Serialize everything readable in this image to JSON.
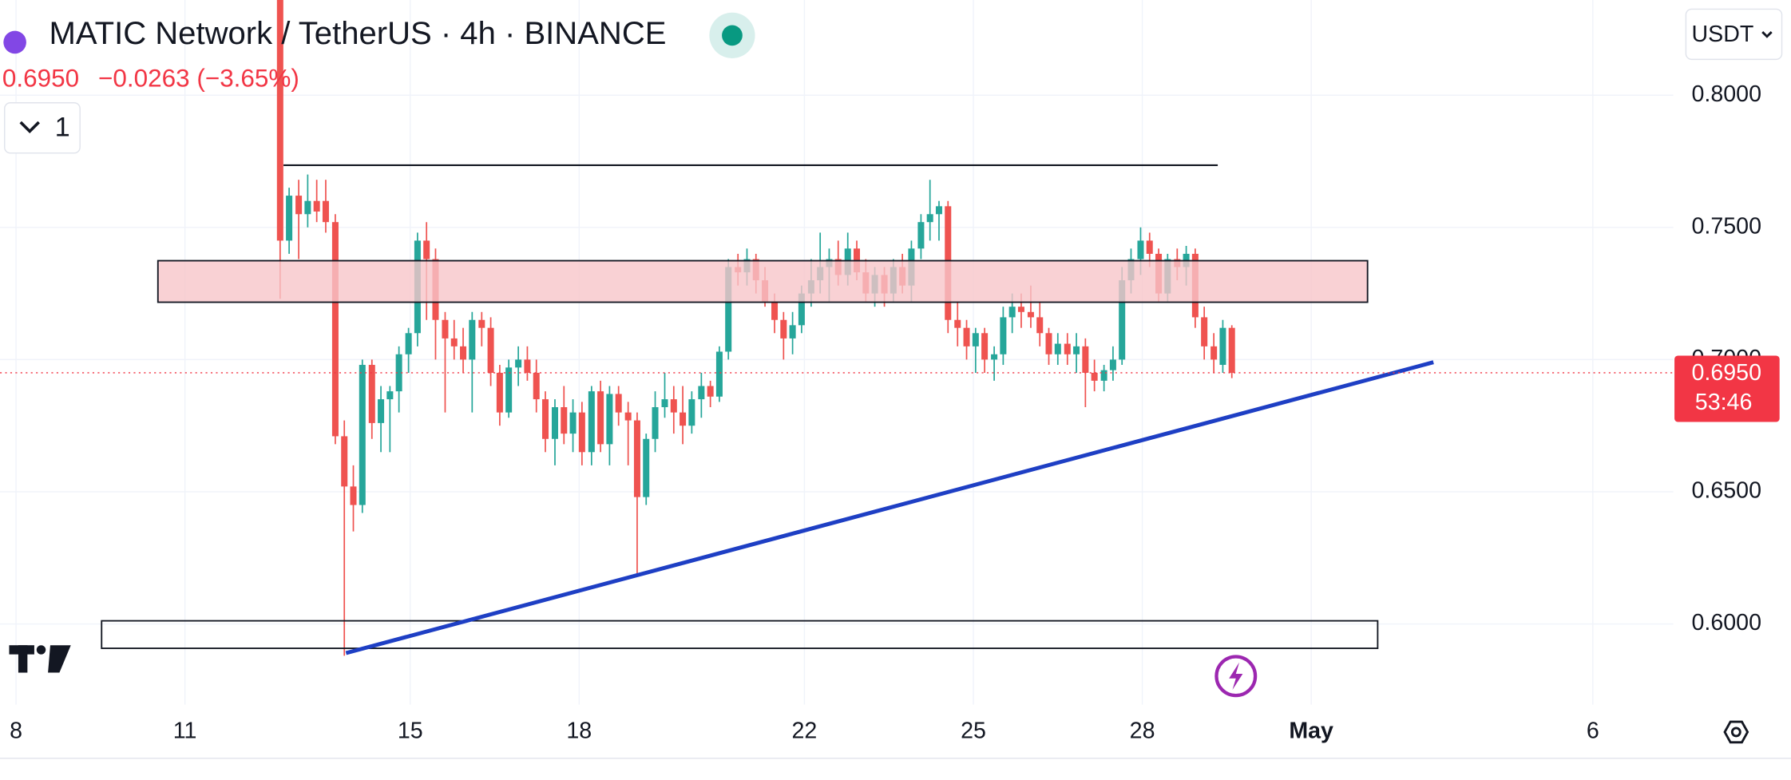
{
  "chart_data": {
    "type": "candlestick",
    "title": "MATIC Network / TetherUS · 4h · BINANCE",
    "price": "0.6950",
    "change": "−0.0263 (−3.65%)",
    "indicator_count": "1",
    "currency": "USDT",
    "last_price_label": "0.6950",
    "countdown": "53:46",
    "last_price": 0.695,
    "up_color": "#26a69a",
    "down_color": "#ef5350",
    "xlim": [
      7.716,
      37.43
    ],
    "ylim": [
      0.5695,
      0.836
    ],
    "xticks": [
      8,
      11,
      15,
      18,
      22,
      25,
      28,
      {
        "value": 31,
        "label": "May"
      },
      {
        "value": 36,
        "label": "6"
      }
    ],
    "yticks": [
      {
        "value": 0.8,
        "label": "0.8000"
      },
      {
        "value": 0.75,
        "label": "0.7500"
      },
      {
        "value": 0.7,
        "label": "0.7000"
      },
      {
        "value": 0.65,
        "label": "0.6500"
      },
      {
        "value": 0.6,
        "label": "0.6000"
      }
    ],
    "grid": true,
    "x": [
      12.69,
      12.85,
      13.02,
      13.18,
      13.34,
      13.5,
      13.67,
      13.83,
      13.99,
      14.15,
      14.32,
      14.48,
      14.64,
      14.8,
      14.97,
      15.13,
      15.29,
      15.45,
      15.62,
      15.78,
      15.94,
      16.1,
      16.27,
      16.43,
      16.59,
      16.75,
      16.92,
      17.08,
      17.24,
      17.4,
      17.57,
      17.73,
      17.89,
      18.05,
      18.22,
      18.38,
      18.54,
      18.7,
      18.87,
      19.03,
      19.19,
      19.35,
      19.52,
      19.68,
      19.84,
      20.0,
      20.17,
      20.33,
      20.49,
      20.65,
      20.82,
      20.98,
      21.14,
      21.3,
      21.47,
      21.63,
      21.79,
      21.95,
      22.12,
      22.28,
      22.44,
      22.6,
      22.77,
      22.93,
      23.09,
      23.25,
      23.42,
      23.58,
      23.74,
      23.9,
      24.07,
      24.23,
      24.39,
      24.55,
      24.72,
      24.88,
      25.04,
      25.2,
      25.37,
      25.53,
      25.69,
      25.85,
      26.02,
      26.18,
      26.34,
      26.5,
      26.67,
      26.83,
      26.99,
      27.15,
      27.32,
      27.48,
      27.64,
      27.8,
      27.97,
      28.13,
      28.29,
      28.45,
      28.62,
      28.78,
      28.94,
      29.1,
      29.27,
      29.43,
      29.59
    ],
    "open": [
      0.84,
      0.745,
      0.762,
      0.755,
      0.76,
      0.76,
      0.752,
      0.671,
      0.652,
      0.645,
      0.698,
      0.676,
      0.685,
      0.688,
      0.702,
      0.71,
      0.745,
      0.738,
      0.715,
      0.708,
      0.705,
      0.7,
      0.715,
      0.712,
      0.695,
      0.68,
      0.697,
      0.7,
      0.695,
      0.685,
      0.67,
      0.682,
      0.672,
      0.68,
      0.665,
      0.688,
      0.668,
      0.687,
      0.68,
      0.677,
      0.648,
      0.67,
      0.682,
      0.685,
      0.68,
      0.675,
      0.685,
      0.69,
      0.686,
      0.703,
      0.735,
      0.733,
      0.738,
      0.73,
      0.722,
      0.715,
      0.708,
      0.713,
      0.725,
      0.73,
      0.735,
      0.738,
      0.732,
      0.742,
      0.733,
      0.725,
      0.732,
      0.725,
      0.735,
      0.728,
      0.742,
      0.752,
      0.755,
      0.758,
      0.715,
      0.712,
      0.705,
      0.71,
      0.7,
      0.702,
      0.716,
      0.72,
      0.718,
      0.716,
      0.71,
      0.702,
      0.706,
      0.702,
      0.705,
      0.695,
      0.692,
      0.696,
      0.7,
      0.73,
      0.738,
      0.745,
      0.74,
      0.725,
      0.738,
      0.735,
      0.74,
      0.716,
      0.705,
      0.698,
      0.712
    ],
    "high": [
      0.845,
      0.765,
      0.768,
      0.77,
      0.768,
      0.768,
      0.755,
      0.677,
      0.66,
      0.7,
      0.7,
      0.69,
      0.69,
      0.705,
      0.712,
      0.748,
      0.752,
      0.742,
      0.718,
      0.715,
      0.712,
      0.718,
      0.718,
      0.716,
      0.698,
      0.7,
      0.705,
      0.705,
      0.7,
      0.688,
      0.685,
      0.69,
      0.685,
      0.684,
      0.69,
      0.692,
      0.69,
      0.69,
      0.684,
      0.68,
      0.672,
      0.688,
      0.695,
      0.69,
      0.69,
      0.688,
      0.695,
      0.692,
      0.705,
      0.738,
      0.74,
      0.742,
      0.74,
      0.735,
      0.725,
      0.718,
      0.718,
      0.728,
      0.738,
      0.748,
      0.742,
      0.745,
      0.748,
      0.745,
      0.738,
      0.735,
      0.735,
      0.738,
      0.74,
      0.745,
      0.755,
      0.768,
      0.76,
      0.76,
      0.722,
      0.715,
      0.712,
      0.712,
      0.705,
      0.72,
      0.725,
      0.725,
      0.728,
      0.722,
      0.712,
      0.71,
      0.71,
      0.71,
      0.708,
      0.7,
      0.698,
      0.705,
      0.735,
      0.742,
      0.75,
      0.748,
      0.742,
      0.74,
      0.742,
      0.743,
      0.742,
      0.72,
      0.71,
      0.715,
      0.713
    ],
    "low": [
      0.723,
      0.74,
      0.738,
      0.75,
      0.752,
      0.748,
      0.668,
      0.588,
      0.635,
      0.642,
      0.67,
      0.665,
      0.665,
      0.68,
      0.695,
      0.705,
      0.715,
      0.7,
      0.68,
      0.7,
      0.695,
      0.68,
      0.705,
      0.69,
      0.675,
      0.678,
      0.69,
      0.692,
      0.68,
      0.665,
      0.66,
      0.668,
      0.665,
      0.66,
      0.66,
      0.665,
      0.66,
      0.675,
      0.66,
      0.618,
      0.645,
      0.665,
      0.678,
      0.672,
      0.668,
      0.672,
      0.678,
      0.682,
      0.684,
      0.7,
      0.728,
      0.728,
      0.725,
      0.72,
      0.71,
      0.7,
      0.702,
      0.71,
      0.72,
      0.725,
      0.722,
      0.728,
      0.728,
      0.73,
      0.722,
      0.72,
      0.72,
      0.722,
      0.725,
      0.722,
      0.738,
      0.745,
      0.745,
      0.71,
      0.705,
      0.7,
      0.695,
      0.695,
      0.692,
      0.698,
      0.71,
      0.712,
      0.712,
      0.705,
      0.698,
      0.698,
      0.698,
      0.695,
      0.682,
      0.688,
      0.688,
      0.692,
      0.698,
      0.725,
      0.732,
      0.735,
      0.722,
      0.722,
      0.73,
      0.728,
      0.712,
      0.7,
      0.695,
      0.695,
      0.693
    ],
    "close": [
      0.745,
      0.762,
      0.755,
      0.76,
      0.756,
      0.752,
      0.671,
      0.652,
      0.645,
      0.698,
      0.676,
      0.685,
      0.688,
      0.702,
      0.71,
      0.745,
      0.738,
      0.715,
      0.708,
      0.705,
      0.7,
      0.715,
      0.712,
      0.695,
      0.68,
      0.697,
      0.7,
      0.695,
      0.685,
      0.67,
      0.682,
      0.672,
      0.68,
      0.665,
      0.688,
      0.668,
      0.687,
      0.68,
      0.677,
      0.648,
      0.67,
      0.682,
      0.685,
      0.68,
      0.675,
      0.685,
      0.69,
      0.686,
      0.703,
      0.735,
      0.733,
      0.738,
      0.73,
      0.722,
      0.715,
      0.708,
      0.713,
      0.725,
      0.73,
      0.735,
      0.738,
      0.732,
      0.742,
      0.733,
      0.725,
      0.732,
      0.725,
      0.735,
      0.728,
      0.742,
      0.752,
      0.755,
      0.758,
      0.715,
      0.712,
      0.705,
      0.71,
      0.7,
      0.702,
      0.716,
      0.72,
      0.718,
      0.716,
      0.71,
      0.702,
      0.706,
      0.702,
      0.705,
      0.695,
      0.692,
      0.696,
      0.7,
      0.73,
      0.738,
      0.745,
      0.74,
      0.725,
      0.738,
      0.735,
      0.74,
      0.716,
      0.705,
      0.7,
      0.712,
      0.695
    ],
    "shapes": [
      {
        "kind": "line",
        "x": [
          12.75,
          29.34
        ],
        "y": [
          0.7735,
          0.7735
        ],
        "color": "#131722"
      },
      {
        "kind": "rect",
        "x": [
          10.52,
          32.0
        ],
        "y": [
          0.7217,
          0.7374
        ],
        "color": "#131722",
        "fill": "#f7c5c9"
      },
      {
        "kind": "rect",
        "x": [
          9.52,
          32.18
        ],
        "y": [
          0.5908,
          0.6012
        ],
        "color": "#131722",
        "fill": "none"
      },
      {
        "kind": "line",
        "x": [
          13.86,
          33.17
        ],
        "y": [
          0.589,
          0.699
        ],
        "color": "#1e3fc4"
      }
    ]
  }
}
